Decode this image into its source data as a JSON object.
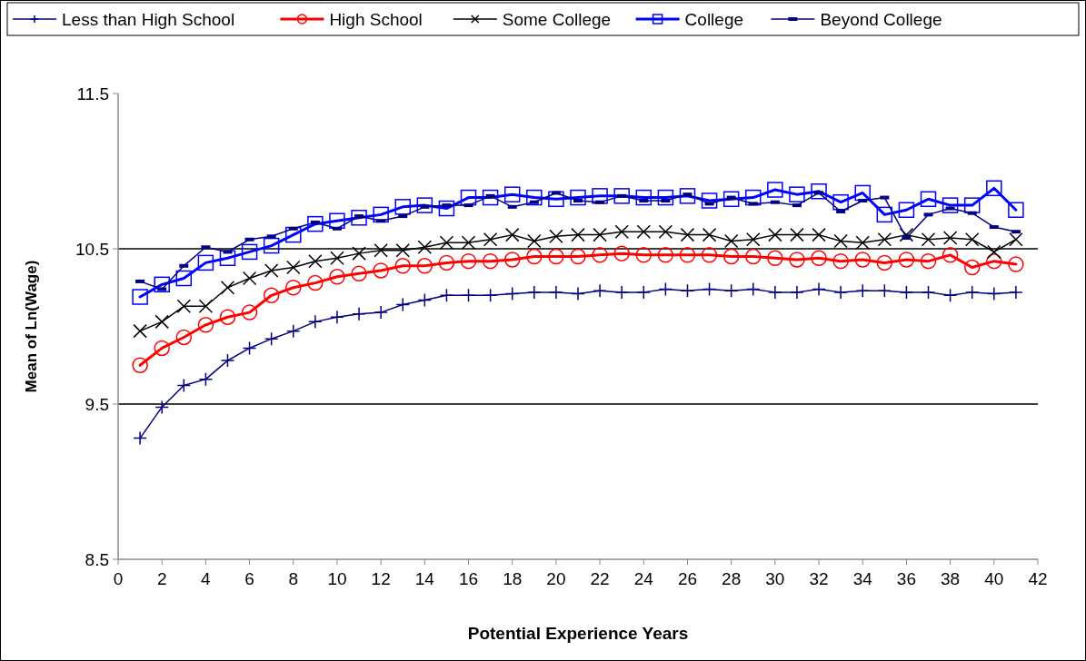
{
  "chart_data": {
    "type": "line",
    "xlabel": "Potential Experience Years",
    "ylabel": "Mean of Ln(Wage)",
    "x": [
      1,
      2,
      3,
      4,
      5,
      6,
      7,
      8,
      9,
      10,
      11,
      12,
      13,
      14,
      15,
      16,
      17,
      18,
      19,
      20,
      21,
      22,
      23,
      24,
      25,
      26,
      27,
      28,
      29,
      30,
      31,
      32,
      33,
      34,
      35,
      36,
      37,
      38,
      39,
      40,
      41
    ],
    "xlim": [
      0,
      42
    ],
    "xticks": [
      0,
      2,
      4,
      6,
      8,
      10,
      12,
      14,
      16,
      18,
      20,
      22,
      24,
      26,
      28,
      30,
      32,
      34,
      36,
      38,
      40,
      42
    ],
    "ylim": [
      8.5,
      11.5
    ],
    "yticks": [
      8.5,
      9.5,
      10.5,
      11.5
    ],
    "grid": "y",
    "legend": "top",
    "series": [
      {
        "name": "Less than High School",
        "color": "#000080",
        "marker": "plus",
        "values": [
          9.28,
          9.48,
          9.62,
          9.66,
          9.78,
          9.86,
          9.92,
          9.97,
          10.03,
          10.06,
          10.08,
          10.09,
          10.14,
          10.17,
          10.2,
          10.2,
          10.2,
          10.21,
          10.22,
          10.22,
          10.21,
          10.23,
          10.22,
          10.22,
          10.24,
          10.23,
          10.24,
          10.23,
          10.24,
          10.22,
          10.22,
          10.24,
          10.22,
          10.23,
          10.23,
          10.22,
          10.22,
          10.2,
          10.22,
          10.21,
          10.22
        ]
      },
      {
        "name": "High School",
        "color": "#ff0000",
        "marker": "circle",
        "values": [
          9.75,
          9.86,
          9.93,
          10.01,
          10.06,
          10.09,
          10.2,
          10.25,
          10.28,
          10.32,
          10.34,
          10.36,
          10.39,
          10.39,
          10.41,
          10.42,
          10.42,
          10.43,
          10.45,
          10.45,
          10.45,
          10.46,
          10.47,
          10.46,
          10.46,
          10.46,
          10.46,
          10.45,
          10.45,
          10.44,
          10.43,
          10.44,
          10.42,
          10.43,
          10.41,
          10.43,
          10.42,
          10.46,
          10.38,
          10.42,
          10.4
        ]
      },
      {
        "name": "Some College",
        "color": "#000000",
        "marker": "x",
        "values": [
          9.97,
          10.03,
          10.13,
          10.13,
          10.25,
          10.31,
          10.36,
          10.38,
          10.42,
          10.44,
          10.47,
          10.49,
          10.49,
          10.51,
          10.54,
          10.54,
          10.56,
          10.59,
          10.55,
          10.58,
          10.59,
          10.59,
          10.61,
          10.61,
          10.61,
          10.59,
          10.59,
          10.55,
          10.56,
          10.59,
          10.59,
          10.59,
          10.55,
          10.54,
          10.56,
          10.59,
          10.56,
          10.57,
          10.56,
          10.48,
          10.56
        ]
      },
      {
        "name": "College",
        "color": "#0000ff",
        "marker": "square",
        "values": [
          10.19,
          10.27,
          10.31,
          10.41,
          10.44,
          10.48,
          10.52,
          10.59,
          10.66,
          10.68,
          10.7,
          10.72,
          10.77,
          10.78,
          10.76,
          10.83,
          10.83,
          10.85,
          10.83,
          10.82,
          10.83,
          10.84,
          10.84,
          10.83,
          10.83,
          10.84,
          10.81,
          10.82,
          10.83,
          10.88,
          10.85,
          10.87,
          10.8,
          10.86,
          10.72,
          10.75,
          10.82,
          10.78,
          10.78,
          10.89,
          10.75
        ]
      },
      {
        "name": "Beyond College",
        "color": "#000080",
        "marker": "square",
        "values": [
          10.29,
          10.24,
          10.39,
          10.51,
          10.48,
          10.56,
          10.58,
          10.63,
          10.67,
          10.63,
          10.71,
          10.68,
          10.71,
          10.77,
          10.78,
          10.78,
          10.84,
          10.77,
          10.8,
          10.86,
          10.81,
          10.8,
          10.84,
          10.81,
          10.81,
          10.85,
          10.79,
          10.83,
          10.79,
          10.8,
          10.78,
          10.86,
          10.74,
          10.81,
          10.83,
          10.57,
          10.72,
          10.76,
          10.73,
          10.64,
          10.61
        ]
      }
    ]
  }
}
